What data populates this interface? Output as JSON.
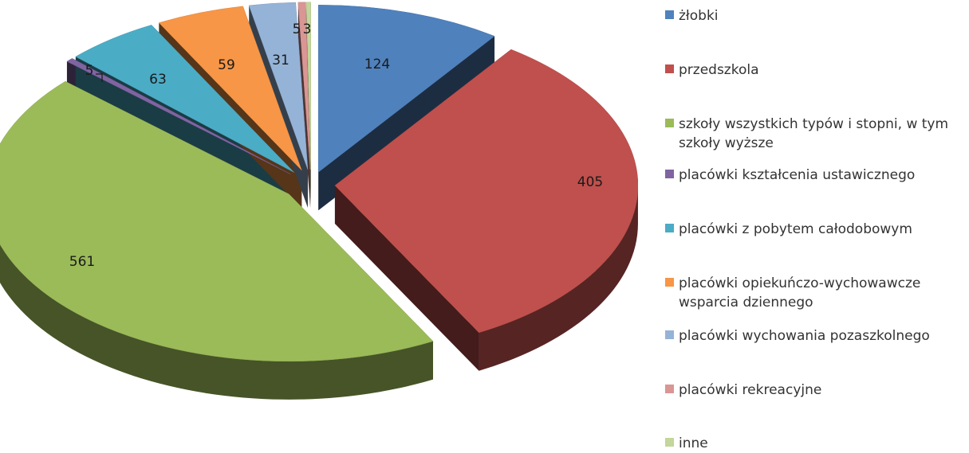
{
  "chart_data": {
    "type": "pie",
    "style": "3d-exploded",
    "title": "",
    "legend_position": "right",
    "categories": [
      "żłobki",
      "przedszkola",
      "szkoły wszystkich typów i stopni, w tym szkoły wyższe",
      "placówki kształcenia ustawicznego",
      "placówki z pobytem całodobowym",
      "placówki opiekuńczo-wychowawcze wsparcia dziennego",
      "placówki wychowania pozaszkolnego",
      "placówki rekreacyjne",
      "inne"
    ],
    "values": [
      124,
      405,
      561,
      5,
      63,
      59,
      31,
      5,
      3
    ],
    "data_labels": [
      "124",
      "405",
      "561",
      "5",
      "63",
      "59",
      "31",
      "5",
      "3"
    ],
    "colors": [
      "#4F81BD",
      "#C0504D",
      "#9BBB59",
      "#8064A2",
      "#4BACC6",
      "#F79646",
      "#95B3D7",
      "#D99694",
      "#C3D69B"
    ]
  }
}
